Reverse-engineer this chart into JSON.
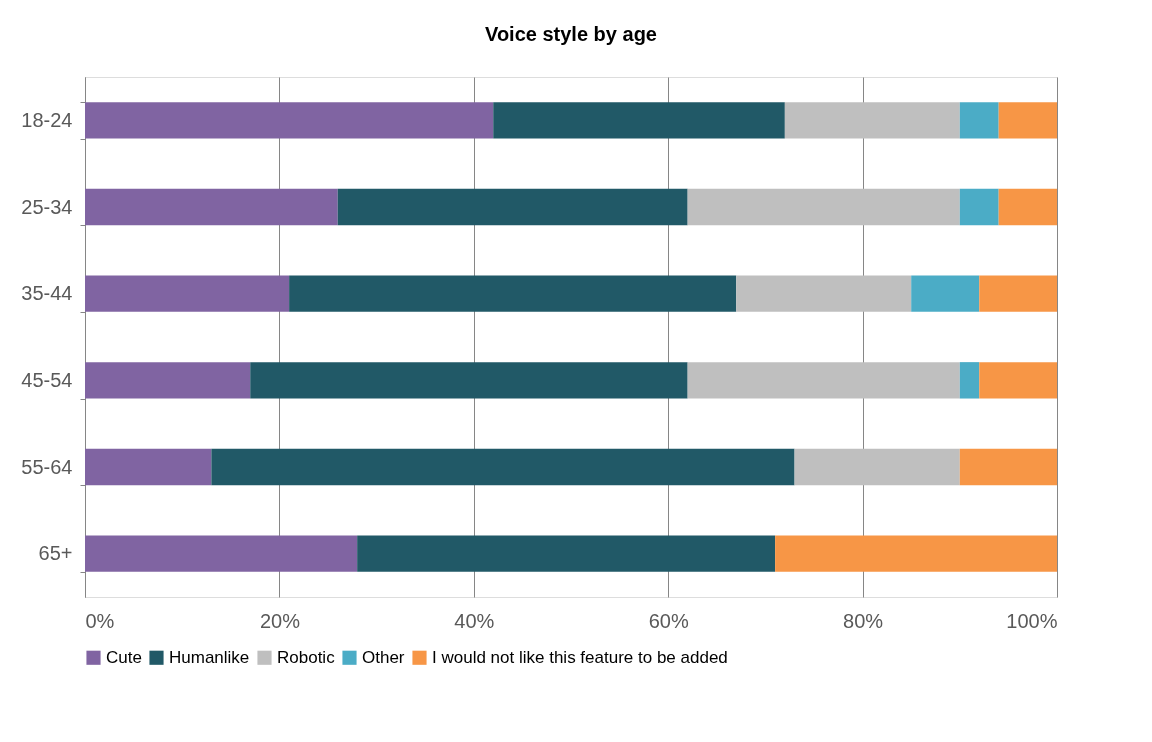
{
  "chart_data": {
    "type": "bar",
    "orientation": "horizontal",
    "stacked": true,
    "title": "Voice style by age",
    "categories": [
      "18-24",
      "25-34",
      "35-44",
      "45-54",
      "55-64",
      "65+"
    ],
    "series": [
      {
        "name": "Cute",
        "color": "#8064a2",
        "values": [
          42,
          26,
          21,
          17,
          13,
          28
        ]
      },
      {
        "name": "Humanlike",
        "color": "#215967",
        "values": [
          30,
          36,
          46,
          45,
          60,
          43
        ]
      },
      {
        "name": "Robotic",
        "color": "#bfbfbf",
        "values": [
          18,
          28,
          18,
          28,
          17,
          0
        ]
      },
      {
        "name": "Other",
        "color": "#4bacc6",
        "values": [
          4,
          4,
          7,
          2,
          0,
          0
        ]
      },
      {
        "name": "I would not like this feature to be added",
        "color": "#f79646",
        "values": [
          6,
          6,
          8,
          8,
          10,
          29
        ]
      }
    ],
    "xlim": [
      0,
      100
    ],
    "xticks": [
      {
        "value": 0,
        "label": "0%"
      },
      {
        "value": 20,
        "label": "20%"
      },
      {
        "value": 40,
        "label": "40%"
      },
      {
        "value": 60,
        "label": "60%"
      },
      {
        "value": 80,
        "label": "80%"
      },
      {
        "value": 100,
        "label": "100%"
      }
    ],
    "grid": "x",
    "legend": "bottom"
  }
}
